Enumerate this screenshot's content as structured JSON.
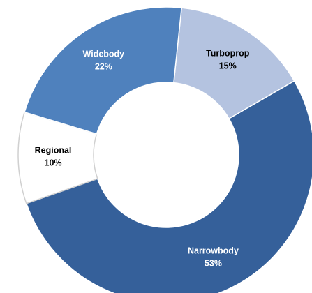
{
  "chart_data": {
    "type": "donut",
    "categories": [
      "Turboprop",
      "Narrowbody",
      "Regional",
      "Widebody"
    ],
    "values": [
      15,
      53,
      10,
      22
    ],
    "value_labels": [
      "15%",
      "53%",
      "10%",
      "22%"
    ],
    "colors": [
      "#b4c3e0",
      "#35609a",
      "#ffffff",
      "#4f81bd"
    ]
  }
}
